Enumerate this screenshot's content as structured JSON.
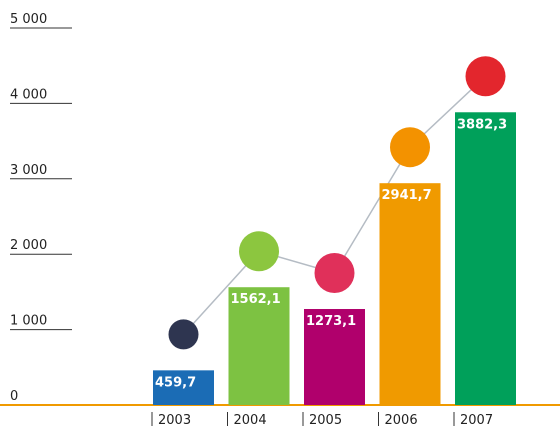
{
  "chart_data": {
    "type": "bar",
    "categories": [
      "2003",
      "2004",
      "2005",
      "2006",
      "2007"
    ],
    "values": [
      459.7,
      1562.1,
      1273.1,
      2941.7,
      3882.3
    ],
    "value_labels": [
      "459,7",
      "1562,1",
      "1273,1",
      "2941,7",
      "3882,3"
    ],
    "colors": [
      "#1b6cb5",
      "#7dc242",
      "#b0006c",
      "#f09a00",
      "#00a05a"
    ],
    "ylim": [
      0,
      5000
    ],
    "yticks": [
      0,
      {
        "value": 1000,
        "label": "1 000"
      },
      {
        "value": 2000,
        "label": "2 000"
      },
      {
        "value": 3000,
        "label": "3 000"
      },
      {
        "value": 4000,
        "label": "4 000"
      },
      {
        "value": 5000,
        "label": "5 000"
      }
    ],
    "axis_color": "#f09a00"
  }
}
